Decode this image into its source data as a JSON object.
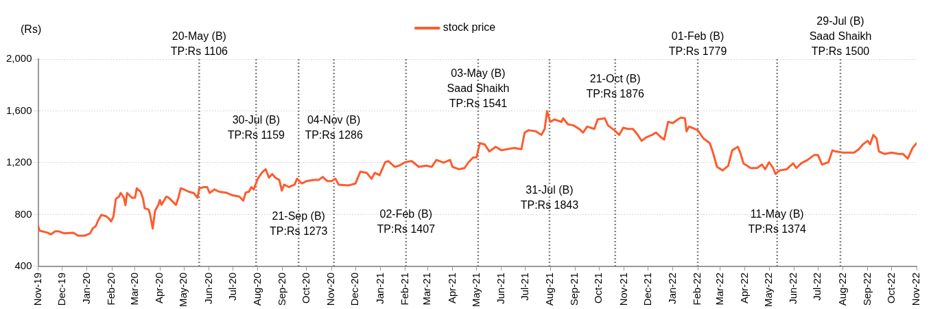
{
  "chart_data": {
    "type": "line",
    "ylabel": "(Rs)",
    "legend": "top",
    "grid": "y",
    "marker": "none",
    "line_style": "solid",
    "x": [
      "2019-11-01",
      "2019-11-03",
      "2019-11-13",
      "2019-11-17",
      "2019-11-22",
      "2019-11-26",
      "2019-12-03",
      "2019-12-15",
      "2019-12-21",
      "2019-12-29",
      "2020-01-05",
      "2020-01-08",
      "2020-01-12",
      "2020-01-15",
      "2020-01-19",
      "2020-01-25",
      "2020-01-29",
      "2020-01-31",
      "2020-02-03",
      "2020-02-06",
      "2020-02-10",
      "2020-02-12",
      "2020-02-16",
      "2020-02-18",
      "2020-02-20",
      "2020-02-26",
      "2020-03-01",
      "2020-03-03",
      "2020-03-08",
      "2020-03-11",
      "2020-03-13",
      "2020-03-18",
      "2020-03-20",
      "2020-03-23",
      "2020-03-26",
      "2020-03-30",
      "2020-04-01",
      "2020-04-03",
      "2020-04-09",
      "2020-04-12",
      "2020-04-15",
      "2020-04-21",
      "2020-04-24",
      "2020-04-27",
      "2020-05-01",
      "2020-05-07",
      "2020-05-13",
      "2020-05-18",
      "2020-05-20",
      "2020-05-26",
      "2020-05-30",
      "2020-06-02",
      "2020-06-08",
      "2020-06-14",
      "2020-06-22",
      "2020-07-01",
      "2020-07-09",
      "2020-07-14",
      "2020-07-17",
      "2020-07-21",
      "2020-07-24",
      "2020-07-27",
      "2020-08-01",
      "2020-08-06",
      "2020-08-11",
      "2020-08-15",
      "2020-08-19",
      "2020-08-23",
      "2020-08-28",
      "2020-08-31",
      "2020-09-03",
      "2020-09-09",
      "2020-09-16",
      "2020-09-19",
      "2020-09-25",
      "2020-10-01",
      "2020-10-10",
      "2020-10-16",
      "2020-10-21",
      "2020-10-27",
      "2020-11-01",
      "2020-11-06",
      "2020-11-10",
      "2020-11-22",
      "2020-12-01",
      "2020-12-07",
      "2020-12-15",
      "2020-12-21",
      "2020-12-25",
      "2020-12-31",
      "2021-01-07",
      "2021-01-11",
      "2021-01-19",
      "2021-01-24",
      "2021-02-01",
      "2021-02-09",
      "2021-02-18",
      "2021-02-27",
      "2021-03-06",
      "2021-03-12",
      "2021-03-21",
      "2021-03-29",
      "2021-04-01",
      "2021-04-09",
      "2021-04-16",
      "2021-04-21",
      "2021-04-27",
      "2021-05-01",
      "2021-05-05",
      "2021-05-11",
      "2021-05-17",
      "2021-05-25",
      "2021-06-01",
      "2021-06-08",
      "2021-06-17",
      "2021-06-26",
      "2021-06-30",
      "2021-07-05",
      "2021-07-14",
      "2021-07-21",
      "2021-07-25",
      "2021-07-28",
      "2021-08-01",
      "2021-08-06",
      "2021-08-15",
      "2021-08-17",
      "2021-08-23",
      "2021-08-30",
      "2021-09-06",
      "2021-09-11",
      "2021-09-16",
      "2021-09-25",
      "2021-09-29",
      "2021-10-08",
      "2021-10-12",
      "2021-10-20",
      "2021-10-26",
      "2021-10-31",
      "2021-11-06",
      "2021-11-12",
      "2021-11-17",
      "2021-11-23",
      "2021-11-29",
      "2021-12-06",
      "2021-12-11",
      "2021-12-17",
      "2021-12-21",
      "2021-12-26",
      "2022-01-01",
      "2022-01-07",
      "2022-01-11",
      "2022-01-16",
      "2022-01-18",
      "2022-01-21",
      "2022-01-25",
      "2022-02-01",
      "2022-02-08",
      "2022-02-16",
      "2022-02-20",
      "2022-02-25",
      "2022-03-04",
      "2022-03-11",
      "2022-03-16",
      "2022-03-23",
      "2022-03-26",
      "2022-03-30",
      "2022-04-08",
      "2022-04-16",
      "2022-04-22",
      "2022-04-26",
      "2022-05-01",
      "2022-05-06",
      "2022-05-09",
      "2022-05-14",
      "2022-05-23",
      "2022-05-31",
      "2022-06-04",
      "2022-06-10",
      "2022-06-18",
      "2022-06-26",
      "2022-07-01",
      "2022-07-06",
      "2022-07-14",
      "2022-07-19",
      "2022-07-23",
      "2022-08-01",
      "2022-08-15",
      "2022-08-21",
      "2022-08-26",
      "2022-09-01",
      "2022-09-04",
      "2022-09-08",
      "2022-09-12",
      "2022-09-15",
      "2022-09-22",
      "2022-10-01",
      "2022-10-10",
      "2022-10-15",
      "2022-10-21",
      "2022-10-27",
      "2022-11-01"
    ],
    "series": [
      {
        "name": "stock price",
        "color": "#fe5b2e",
        "values": [
          711,
          675,
          660,
          647,
          670,
          672,
          656,
          660,
          637,
          637,
          655,
          692,
          711,
          756,
          798,
          787,
          765,
          747,
          784,
          921,
          939,
          967,
          930,
          872,
          967,
          930,
          930,
          1003,
          976,
          921,
          848,
          839,
          793,
          692,
          830,
          875,
          912,
          875,
          939,
          930,
          912,
          875,
          930,
          1003,
          994,
          976,
          967,
          930,
          1003,
          1012,
          1012,
          967,
          994,
          976,
          970,
          948,
          939,
          908,
          970,
          976,
          1012,
          994,
          1076,
          1122,
          1150,
          1085,
          1113,
          1085,
          1067,
          985,
          1031,
          1012,
          1031,
          1076,
          1040,
          1058,
          1067,
          1067,
          1091,
          1058,
          1058,
          1076,
          1031,
          1025,
          1040,
          1131,
          1122,
          1076,
          1122,
          1104,
          1204,
          1213,
          1168,
          1177,
          1204,
          1213,
          1168,
          1177,
          1168,
          1222,
          1201,
          1222,
          1168,
          1150,
          1159,
          1204,
          1241,
          1241,
          1351,
          1342,
          1287,
          1323,
          1296,
          1305,
          1314,
          1305,
          1433,
          1451,
          1442,
          1415,
          1461,
          1598,
          1515,
          1534,
          1515,
          1543,
          1497,
          1488,
          1461,
          1433,
          1479,
          1461,
          1534,
          1543,
          1488,
          1451,
          1415,
          1470,
          1461,
          1461,
          1424,
          1369,
          1397,
          1415,
          1433,
          1397,
          1378,
          1515,
          1506,
          1534,
          1548,
          1543,
          1442,
          1479,
          1470,
          1451,
          1388,
          1351,
          1278,
          1168,
          1141,
          1177,
          1296,
          1323,
          1278,
          1195,
          1159,
          1159,
          1186,
          1150,
          1204,
          1159,
          1113,
          1141,
          1150,
          1195,
          1159,
          1195,
          1222,
          1259,
          1259,
          1186,
          1204,
          1296,
          1287,
          1278,
          1278,
          1305,
          1342,
          1369,
          1342,
          1415,
          1388,
          1287,
          1268,
          1278,
          1268,
          1268,
          1232,
          1314,
          1351
        ]
      }
    ],
    "xlim": [
      "2019-11-01",
      "2022-11-01"
    ],
    "xticks": [
      {
        "value": "2019-11-01",
        "label": "Nov-19"
      },
      {
        "value": "2019-12-01",
        "label": "Dec-19"
      },
      {
        "value": "2020-01-01",
        "label": "Jan-20"
      },
      {
        "value": "2020-02-01",
        "label": "Feb-20"
      },
      {
        "value": "2020-03-01",
        "label": "Mar-20"
      },
      {
        "value": "2020-04-01",
        "label": "Apr-20"
      },
      {
        "value": "2020-05-01",
        "label": "May-20"
      },
      {
        "value": "2020-06-01",
        "label": "Jun-20"
      },
      {
        "value": "2020-07-01",
        "label": "Jul-20"
      },
      {
        "value": "2020-08-01",
        "label": "Aug-20"
      },
      {
        "value": "2020-09-01",
        "label": "Sep-20"
      },
      {
        "value": "2020-10-01",
        "label": "Oct-20"
      },
      {
        "value": "2020-11-01",
        "label": "Nov-20"
      },
      {
        "value": "2020-12-01",
        "label": "Dec-20"
      },
      {
        "value": "2021-01-01",
        "label": "Jan-21"
      },
      {
        "value": "2021-02-01",
        "label": "Feb-21"
      },
      {
        "value": "2021-03-01",
        "label": "Mar-21"
      },
      {
        "value": "2021-04-01",
        "label": "Apr-21"
      },
      {
        "value": "2021-05-01",
        "label": "May-21"
      },
      {
        "value": "2021-06-01",
        "label": "Jun-21"
      },
      {
        "value": "2021-07-01",
        "label": "Jul-21"
      },
      {
        "value": "2021-08-01",
        "label": "Aug-21"
      },
      {
        "value": "2021-09-01",
        "label": "Sep-21"
      },
      {
        "value": "2021-10-01",
        "label": "Oct-21"
      },
      {
        "value": "2021-11-01",
        "label": "Nov-21"
      },
      {
        "value": "2021-12-01",
        "label": "Dec-21"
      },
      {
        "value": "2022-01-01",
        "label": "Jan-22"
      },
      {
        "value": "2022-02-01",
        "label": "Feb-22"
      },
      {
        "value": "2022-03-01",
        "label": "Mar-22"
      },
      {
        "value": "2022-04-01",
        "label": "Apr-22"
      },
      {
        "value": "2022-05-01",
        "label": "May-22"
      },
      {
        "value": "2022-06-01",
        "label": "Jun-22"
      },
      {
        "value": "2022-07-01",
        "label": "Jul-22"
      },
      {
        "value": "2022-08-01",
        "label": "Aug-22"
      },
      {
        "value": "2022-09-01",
        "label": "Sep-22"
      },
      {
        "value": "2022-10-01",
        "label": "Oct-22"
      },
      {
        "value": "2022-11-01",
        "label": "Nov-22"
      }
    ],
    "ylim": [
      400,
      2000
    ],
    "yticks": [
      {
        "value": 400,
        "label": "400"
      },
      {
        "value": 800,
        "label": "800"
      },
      {
        "value": 1200,
        "label": "1,200"
      },
      {
        "value": 1600,
        "label": "1,600"
      },
      {
        "value": 2000,
        "label": "2,000"
      }
    ],
    "ref_lines": [
      {
        "axis": "x",
        "value": "2020-05-20",
        "label": "20-May (B)\nTP:Rs 1106",
        "color": "#808080",
        "line_style": "dotted"
      },
      {
        "axis": "x",
        "value": "2020-07-30",
        "label": "30-Jul (B)\nTP:Rs 1159",
        "color": "#808080",
        "line_style": "dotted"
      },
      {
        "axis": "x",
        "value": "2020-09-21",
        "label": "21-Sep (B)\nTP:Rs 1273",
        "color": "#808080",
        "line_style": "dotted"
      },
      {
        "axis": "x",
        "value": "2020-11-04",
        "label": "04-Nov (B)\nTP:Rs 1286",
        "color": "#808080",
        "line_style": "dotted"
      },
      {
        "axis": "x",
        "value": "2021-02-02",
        "label": "02-Feb (B)\nTP:Rs 1407",
        "color": "#808080",
        "line_style": "dotted"
      },
      {
        "axis": "x",
        "value": "2021-05-03",
        "label": "03-May (B)\nSaad Shaikh\nTP:Rs 1541",
        "color": "#808080",
        "line_style": "dotted"
      },
      {
        "axis": "x",
        "value": "2021-07-31",
        "label": "31-Jul (B)\nTP:Rs 1843",
        "color": "#808080",
        "line_style": "dotted"
      },
      {
        "axis": "x",
        "value": "2021-10-21",
        "label": "21-Oct (B)\nTP:Rs 1876",
        "color": "#808080",
        "line_style": "dotted"
      },
      {
        "axis": "x",
        "value": "2022-02-01",
        "label": "01-Feb (B)\nTP:Rs 1779",
        "color": "#808080",
        "line_style": "dotted"
      },
      {
        "axis": "x",
        "value": "2022-05-11",
        "label": "11-May (B)\nTP:Rs 1374",
        "color": "#808080",
        "line_style": "dotted"
      },
      {
        "axis": "x",
        "value": "2022-07-29",
        "label": "29-Jul (B)\nSaad Shaikh\nTP:Rs 1500",
        "color": "#808080",
        "line_style": "dotted"
      }
    ]
  }
}
